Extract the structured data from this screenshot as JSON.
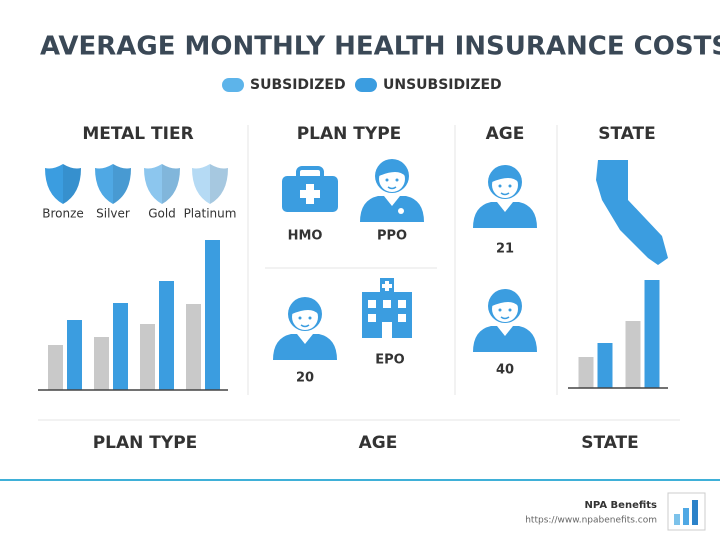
{
  "header": {
    "title": "AVERAGE MONTHLY HEALTH INSURANCE COSTS"
  },
  "chart_data": [
    {
      "type": "bar",
      "title": "METAL TIER",
      "categories": [
        "Bronze",
        "Silver",
        "Gold",
        "Platinum"
      ],
      "series": [
        {
          "name": "SUBSIDIZED",
          "color": "#c9c9c9",
          "values": [
            45,
            53,
            66,
            86
          ]
        },
        {
          "name": "UNSUBSIDIZED",
          "color": "#3b9de0",
          "values": [
            70,
            87,
            109,
            150
          ]
        }
      ],
      "ylim": [
        0,
        160
      ]
    },
    {
      "type": "bar",
      "title": "STATE",
      "categories": [
        null,
        null
      ],
      "series": [
        {
          "color": "#c9c9c9",
          "values": [
            31,
            67
          ]
        },
        {
          "color": "#3b9de0",
          "values": [
            45,
            108
          ]
        }
      ],
      "ylim": [
        0,
        120
      ]
    }
  ],
  "plan_type": {
    "title": "PLAN TYPE",
    "items": [
      "HMO",
      "PPO",
      "EPO",
      "20"
    ]
  },
  "age": {
    "title": "AGE",
    "items": [
      "21",
      "40"
    ]
  },
  "bottom_labels": [
    "PLAN TYPE",
    "AGE",
    "STATE"
  ],
  "footer": {
    "brand": "NPA Benefits",
    "url": "https://www.npabenefits.com"
  }
}
